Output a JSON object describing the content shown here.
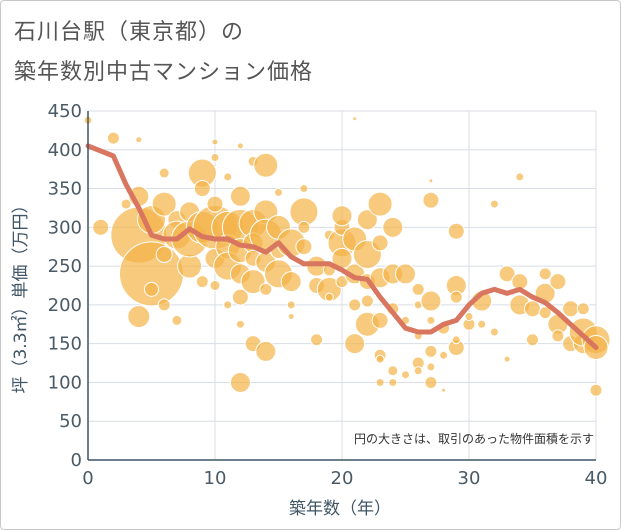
{
  "title_line1": "石川台駅（東京都）の",
  "title_line2": "築年数別中古マンション価格",
  "chart_data": {
    "type": "scatter",
    "xlabel": "築年数（年）",
    "ylabel": "坪（3.3㎡）単価（万円）",
    "xlim": [
      0,
      40
    ],
    "ylim": [
      0,
      450
    ],
    "xticks": [
      "0",
      "10",
      "20",
      "30",
      "40"
    ],
    "yticks": [
      "0",
      "50",
      "100",
      "150",
      "200",
      "250",
      "300",
      "350",
      "400",
      "450"
    ],
    "annotation": "円の大きさは、取引のあった物件面積を示す",
    "grid": true,
    "colors": {
      "bubble": "#f3b447",
      "line": "#d9765f",
      "grid": "#d8dee4",
      "axis": "#3f5566"
    },
    "points": [
      [
        0,
        438,
        4
      ],
      [
        2,
        415,
        6
      ],
      [
        4,
        413,
        3
      ],
      [
        1,
        300,
        8
      ],
      [
        3,
        330,
        5
      ],
      [
        4,
        290,
        28
      ],
      [
        4,
        340,
        10
      ],
      [
        5,
        240,
        32
      ],
      [
        4,
        185,
        11
      ],
      [
        5,
        220,
        7
      ],
      [
        5,
        310,
        14
      ],
      [
        6,
        330,
        12
      ],
      [
        6,
        370,
        5
      ],
      [
        6,
        265,
        8
      ],
      [
        6,
        200,
        6
      ],
      [
        7,
        310,
        9
      ],
      [
        7,
        290,
        14
      ],
      [
        7,
        180,
        5
      ],
      [
        8,
        250,
        12
      ],
      [
        8,
        285,
        18
      ],
      [
        8,
        320,
        10
      ],
      [
        9,
        370,
        14
      ],
      [
        9,
        350,
        8
      ],
      [
        9,
        300,
        16
      ],
      [
        9,
        230,
        6
      ],
      [
        10,
        390,
        4
      ],
      [
        10,
        410,
        3
      ],
      [
        10,
        300,
        22
      ],
      [
        10,
        260,
        10
      ],
      [
        10,
        330,
        8
      ],
      [
        10,
        225,
        5
      ],
      [
        11,
        300,
        16
      ],
      [
        11,
        275,
        12
      ],
      [
        11,
        250,
        14
      ],
      [
        11,
        365,
        4
      ],
      [
        11,
        200,
        4
      ],
      [
        12,
        340,
        10
      ],
      [
        12,
        300,
        18
      ],
      [
        12,
        270,
        12
      ],
      [
        12,
        240,
        10
      ],
      [
        12,
        210,
        8
      ],
      [
        12,
        100,
        10
      ],
      [
        12,
        405,
        3
      ],
      [
        12,
        175,
        4
      ],
      [
        13,
        305,
        14
      ],
      [
        13,
        280,
        10
      ],
      [
        13,
        260,
        8
      ],
      [
        13,
        230,
        12
      ],
      [
        13,
        150,
        8
      ],
      [
        13,
        385,
        5
      ],
      [
        14,
        380,
        12
      ],
      [
        14,
        320,
        12
      ],
      [
        14,
        290,
        16
      ],
      [
        14,
        255,
        10
      ],
      [
        14,
        140,
        10
      ],
      [
        14,
        220,
        6
      ],
      [
        15,
        300,
        12
      ],
      [
        15,
        270,
        8
      ],
      [
        15,
        240,
        14
      ],
      [
        15,
        345,
        4
      ],
      [
        16,
        280,
        14
      ],
      [
        16,
        230,
        10
      ],
      [
        16,
        200,
        4
      ],
      [
        16,
        185,
        3
      ],
      [
        17,
        320,
        14
      ],
      [
        17,
        300,
        6
      ],
      [
        17,
        350,
        4
      ],
      [
        17,
        275,
        8
      ],
      [
        18,
        250,
        10
      ],
      [
        18,
        225,
        8
      ],
      [
        18,
        155,
        6
      ],
      [
        19,
        220,
        12
      ],
      [
        19,
        245,
        6
      ],
      [
        19,
        290,
        5
      ],
      [
        19,
        210,
        4
      ],
      [
        20,
        280,
        14
      ],
      [
        20,
        300,
        8
      ],
      [
        20,
        260,
        10
      ],
      [
        20,
        230,
        6
      ],
      [
        20,
        315,
        10
      ],
      [
        21,
        285,
        12
      ],
      [
        21,
        240,
        10
      ],
      [
        21,
        200,
        6
      ],
      [
        21,
        150,
        10
      ],
      [
        21,
        440,
        2
      ],
      [
        22,
        310,
        10
      ],
      [
        22,
        265,
        14
      ],
      [
        22,
        230,
        8
      ],
      [
        22,
        175,
        12
      ],
      [
        22,
        205,
        6
      ],
      [
        23,
        330,
        12
      ],
      [
        23,
        280,
        8
      ],
      [
        23,
        235,
        10
      ],
      [
        23,
        180,
        8
      ],
      [
        23,
        135,
        6
      ],
      [
        23,
        100,
        4
      ],
      [
        23,
        130,
        4
      ],
      [
        24,
        300,
        10
      ],
      [
        24,
        240,
        10
      ],
      [
        24,
        195,
        6
      ],
      [
        24,
        115,
        5
      ],
      [
        24,
        100,
        4
      ],
      [
        25,
        240,
        10
      ],
      [
        25,
        180,
        4
      ],
      [
        25,
        110,
        4
      ],
      [
        26,
        220,
        6
      ],
      [
        26,
        200,
        4
      ],
      [
        26,
        160,
        4
      ],
      [
        26,
        125,
        6
      ],
      [
        26,
        115,
        4
      ],
      [
        27,
        335,
        8
      ],
      [
        27,
        205,
        10
      ],
      [
        27,
        180,
        4
      ],
      [
        27,
        140,
        6
      ],
      [
        27,
        120,
        4
      ],
      [
        27,
        100,
        6
      ],
      [
        27,
        360,
        2
      ],
      [
        28,
        170,
        6
      ],
      [
        28,
        135,
        4
      ],
      [
        28,
        90,
        2
      ],
      [
        29,
        295,
        8
      ],
      [
        29,
        225,
        10
      ],
      [
        29,
        210,
        6
      ],
      [
        29,
        145,
        8
      ],
      [
        29,
        155,
        4
      ],
      [
        30,
        175,
        6
      ],
      [
        30,
        185,
        4
      ],
      [
        31,
        205,
        10
      ],
      [
        31,
        175,
        4
      ],
      [
        32,
        330,
        4
      ],
      [
        32,
        165,
        4
      ],
      [
        33,
        240,
        8
      ],
      [
        33,
        130,
        3
      ],
      [
        34,
        365,
        4
      ],
      [
        34,
        230,
        8
      ],
      [
        34,
        200,
        10
      ],
      [
        35,
        195,
        8
      ],
      [
        35,
        155,
        6
      ],
      [
        36,
        240,
        6
      ],
      [
        36,
        215,
        10
      ],
      [
        36,
        190,
        6
      ],
      [
        37,
        230,
        8
      ],
      [
        37,
        175,
        10
      ],
      [
        37,
        160,
        6
      ],
      [
        38,
        195,
        8
      ],
      [
        38,
        150,
        8
      ],
      [
        39,
        195,
        6
      ],
      [
        39,
        150,
        10
      ],
      [
        39,
        165,
        14
      ],
      [
        40,
        155,
        14
      ],
      [
        40,
        145,
        12
      ],
      [
        40,
        90,
        6
      ]
    ],
    "trend": {
      "x": [
        0,
        2,
        3,
        4,
        5,
        6,
        7,
        8,
        9,
        10,
        11,
        12,
        13,
        14,
        15,
        16,
        17,
        18,
        19,
        20,
        21,
        22,
        23,
        24,
        25,
        26,
        27,
        28,
        29,
        30,
        31,
        32,
        33,
        34,
        35,
        36,
        37,
        38,
        39,
        40
      ],
      "y": [
        405,
        392,
        355,
        325,
        290,
        285,
        285,
        298,
        288,
        285,
        285,
        277,
        275,
        268,
        280,
        262,
        253,
        253,
        253,
        245,
        235,
        233,
        210,
        190,
        170,
        165,
        165,
        175,
        180,
        200,
        215,
        220,
        215,
        220,
        210,
        203,
        190,
        175,
        160,
        145
      ]
    }
  }
}
